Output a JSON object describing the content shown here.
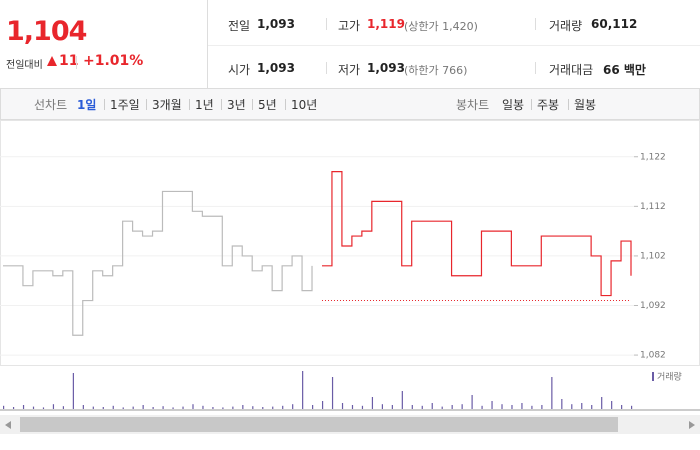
{
  "header": {
    "price": "1,104",
    "change_label": "전일대비",
    "change": "11",
    "change_rate": "+1.01%"
  },
  "stats": [
    {
      "label": "전일",
      "value": "1,093"
    },
    {
      "label": "고가",
      "value": "1,119",
      "note": "(상한가 1,420)"
    },
    {
      "label": "거래량",
      "value": "60,112"
    },
    {
      "label": "시가",
      "value": "1,093"
    },
    {
      "label": "저가",
      "value": "1,093",
      "note": "(하한가 766)"
    },
    {
      "label": "거래대금",
      "value": "66 백만"
    }
  ],
  "tabs": {
    "line_label": "선차트",
    "line": [
      "1일",
      "1주일",
      "3개월",
      "1년",
      "3년",
      "5년",
      "10년"
    ],
    "candle_label": "봉차트",
    "candle": [
      "일봉",
      "주봉",
      "월봉"
    ]
  },
  "chart_data": {
    "type": "line",
    "categories": [
      null,
      null,
      null,
      null,
      null,
      null,
      null,
      null,
      null,
      null,
      null,
      null,
      null,
      null,
      null,
      null,
      null,
      null,
      null,
      null,
      null,
      null,
      null,
      null,
      null,
      null,
      null,
      null,
      null,
      null,
      null,
      null,
      null,
      null,
      null,
      null,
      null,
      null,
      null,
      null,
      null,
      null,
      null,
      null,
      null,
      null,
      null,
      null,
      null,
      null,
      null,
      null,
      null,
      null,
      null,
      null,
      null,
      null,
      null,
      null,
      null,
      null,
      null,
      null
    ],
    "series": [
      {
        "color": "#bbbbbb",
        "values": [
          1100,
          1100,
          1096,
          1099,
          1099,
          1098,
          1099,
          1086,
          1093,
          1099,
          1098,
          1100,
          1109,
          1107,
          1106,
          1107,
          1115,
          1115,
          1115,
          1111,
          1110,
          1110,
          1100,
          1104,
          1102,
          1099,
          1100,
          1095,
          1100,
          1102,
          1095,
          1100,
          null,
          null,
          null,
          null,
          null,
          null,
          null,
          null,
          null,
          null,
          null,
          null,
          null,
          null,
          null,
          null,
          null,
          null,
          null,
          null,
          null,
          null,
          null,
          null,
          null,
          null,
          null,
          null,
          null,
          null,
          null,
          null
        ]
      },
      {
        "color": "#e8262c",
        "fill": "#fde3e5",
        "values": [
          null,
          null,
          null,
          null,
          null,
          null,
          null,
          null,
          null,
          null,
          null,
          null,
          null,
          null,
          null,
          null,
          null,
          null,
          null,
          null,
          null,
          null,
          null,
          null,
          null,
          null,
          null,
          null,
          null,
          null,
          null,
          null,
          1100,
          1119,
          1104,
          1106,
          1107,
          1113,
          1113,
          1113,
          1100,
          1109,
          1109,
          1109,
          1109,
          1098,
          1098,
          1098,
          1107,
          1107,
          1107,
          1100,
          1100,
          1100,
          1106,
          1106,
          1106,
          1106,
          1106,
          1102,
          1094,
          1101,
          1105,
          1098
        ]
      }
    ],
    "baseline": 1093,
    "ylim": [
      1080,
      1128
    ],
    "yticks": [
      {
        "value": 1082,
        "label": "1,082"
      },
      {
        "value": 1092,
        "label": "1,092"
      },
      {
        "value": 1102,
        "label": "1,102"
      },
      {
        "value": 1112,
        "label": "1,112"
      },
      {
        "value": 1122,
        "label": "1,122"
      }
    ],
    "grid": true,
    "volume": {
      "name": "거래량",
      "color": "#6a5ca6",
      "lim": [
        0,
        100
      ],
      "values": [
        8,
        5,
        10,
        6,
        4,
        12,
        7,
        90,
        10,
        6,
        5,
        8,
        4,
        6,
        10,
        5,
        7,
        4,
        6,
        12,
        8,
        5,
        4,
        6,
        10,
        7,
        5,
        6,
        8,
        12,
        95,
        10,
        20,
        80,
        15,
        10,
        8,
        30,
        12,
        10,
        45,
        10,
        8,
        15,
        6,
        10,
        12,
        35,
        8,
        20,
        12,
        10,
        15,
        8,
        10,
        80,
        25,
        12,
        15,
        10,
        30,
        20,
        10,
        8
      ]
    }
  }
}
